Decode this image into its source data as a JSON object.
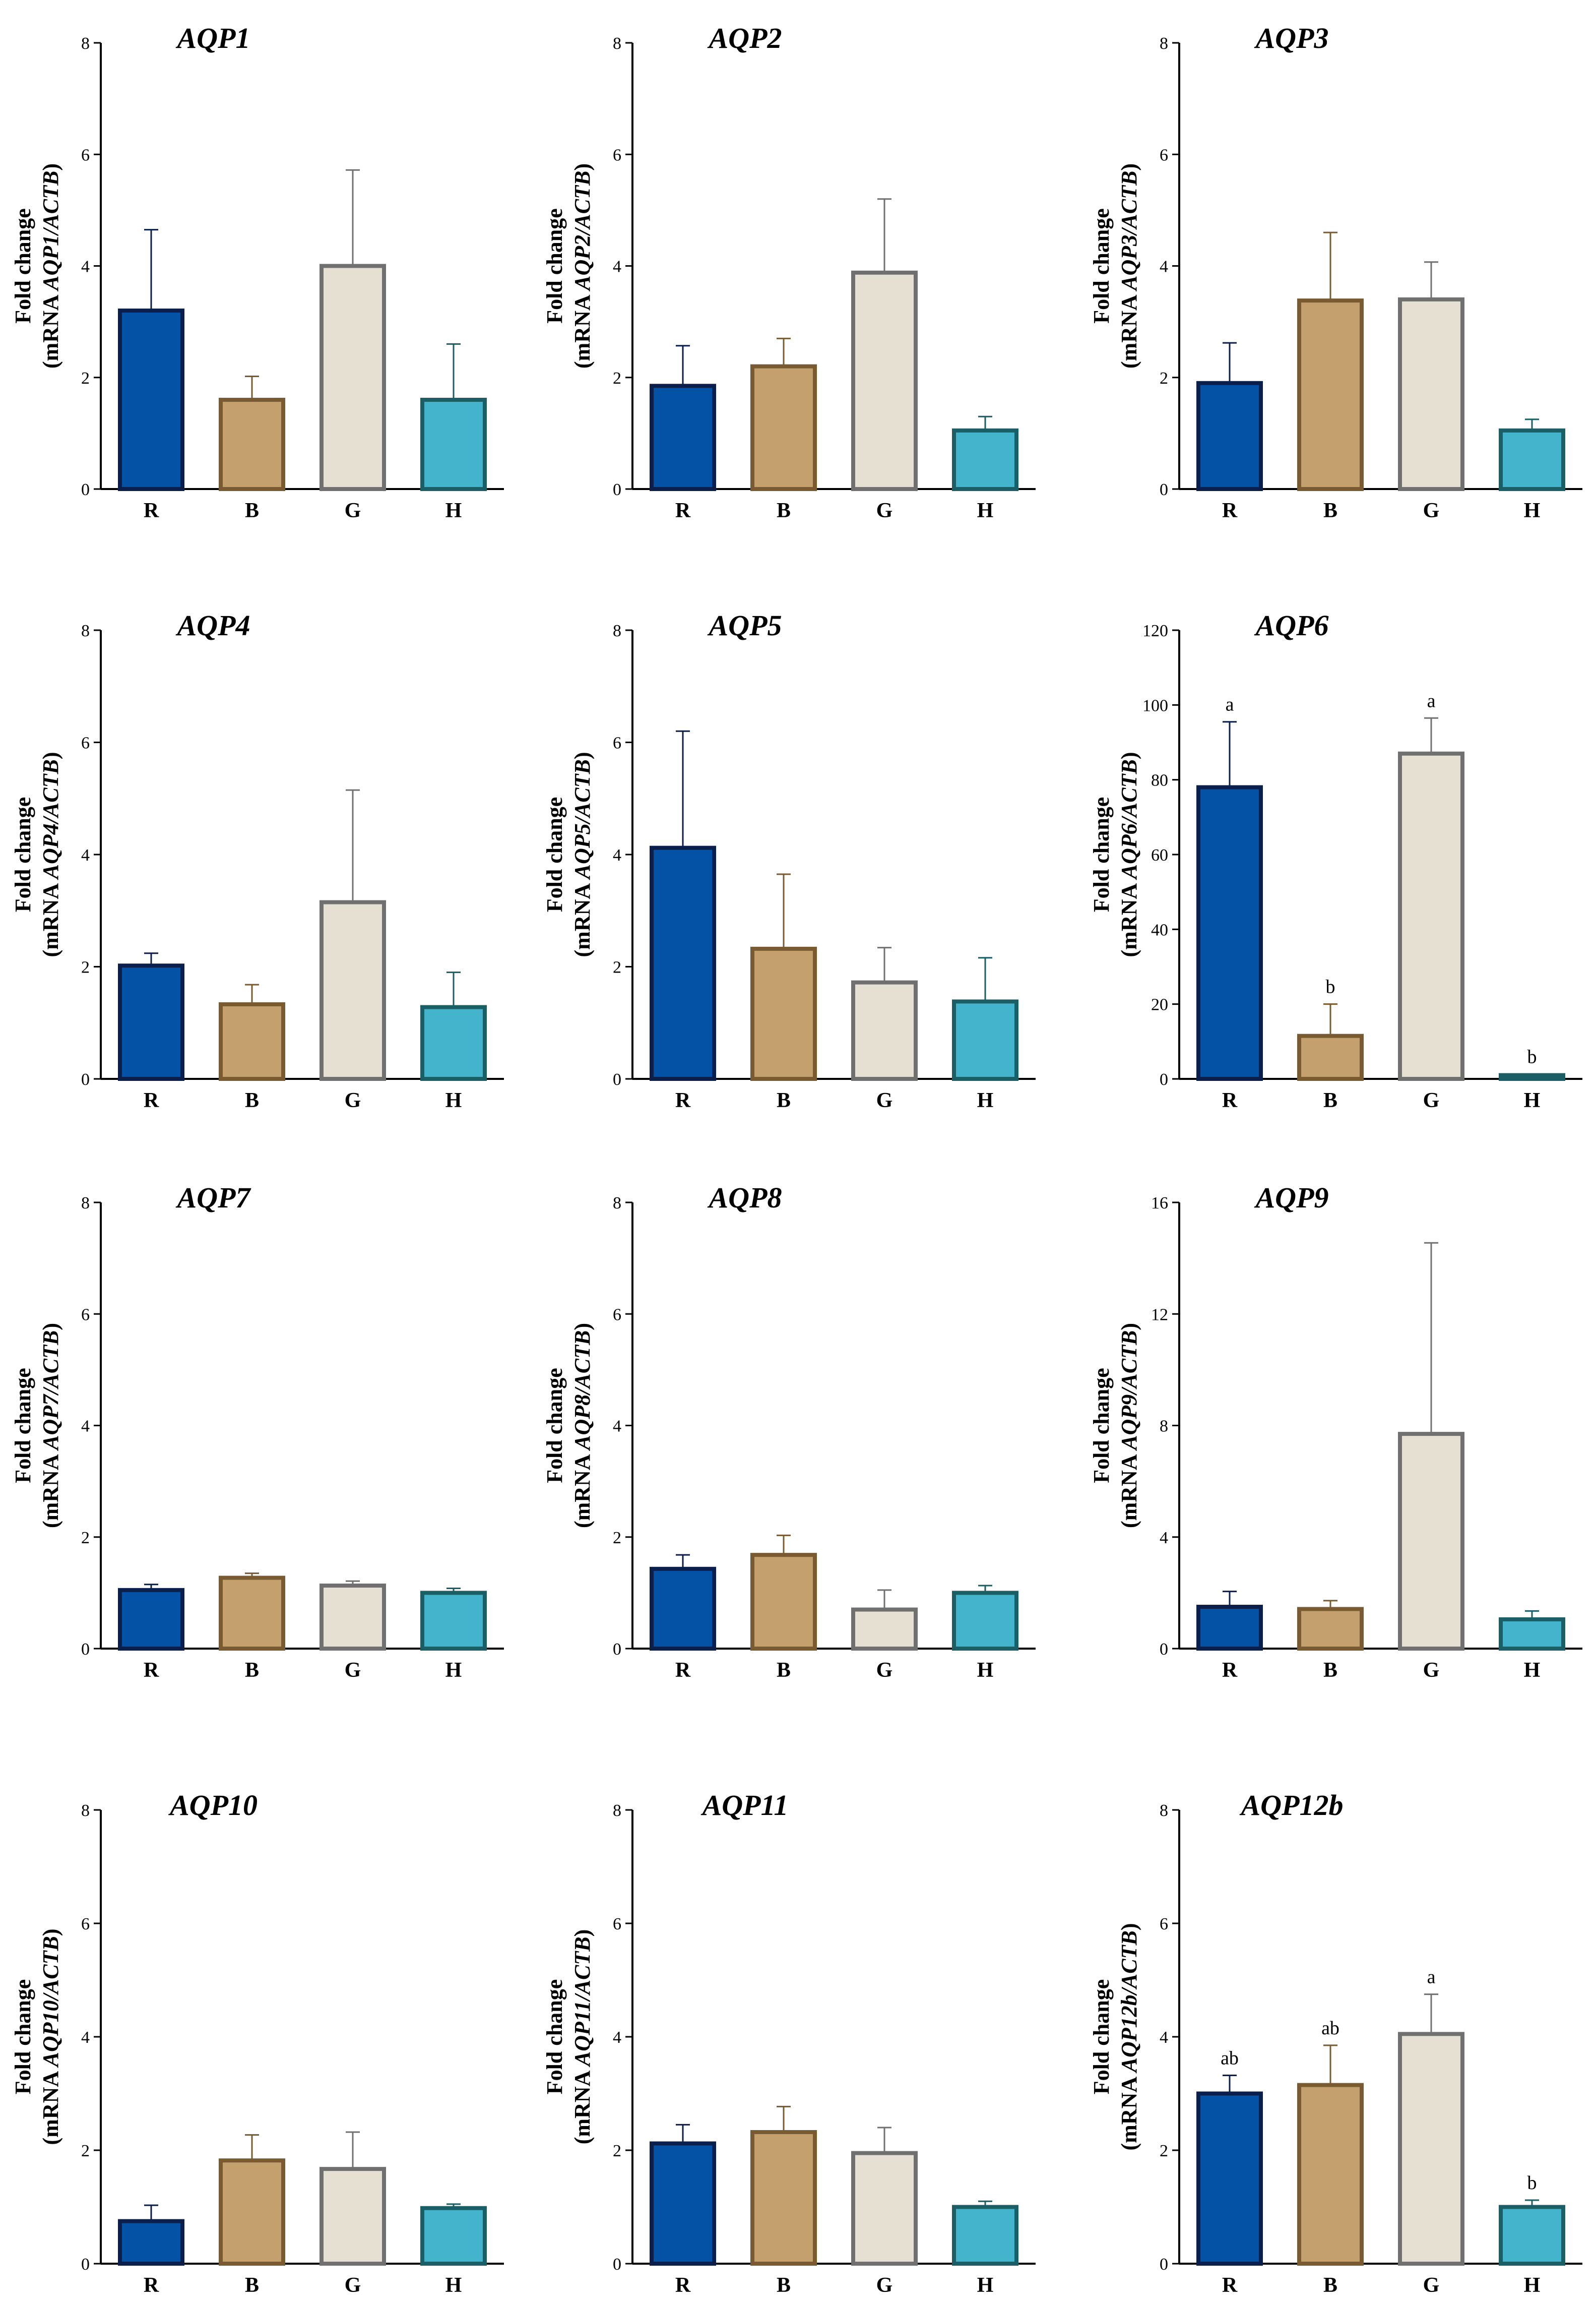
{
  "figure": {
    "colors": {
      "R": {
        "fill": "#0352a6",
        "stroke": "#0b1f4d"
      },
      "B": {
        "fill": "#c4a06f",
        "stroke": "#7a5a30"
      },
      "G": {
        "fill": "#e6e0d3",
        "stroke": "#707070"
      },
      "H": {
        "fill": "#44b4cc",
        "stroke": "#1a5e66"
      }
    }
  },
  "chart_data": [
    {
      "type": "bar",
      "title": "AQP1",
      "ylabel_line1": "Fold change",
      "ylabel_prefix": "(mRNA ",
      "ylabel_gene": "AQP1/ACTB",
      "ylabel_suffix": ")",
      "categories": [
        "R",
        "B",
        "G",
        "H"
      ],
      "values": [
        3.2,
        1.6,
        4.0,
        1.6
      ],
      "errors": [
        1.45,
        0.42,
        1.72,
        1.0
      ],
      "significance": [],
      "ylim": [
        0,
        8
      ],
      "yticks": [
        0,
        2,
        4,
        6,
        8
      ]
    },
    {
      "type": "bar",
      "title": "AQP2",
      "ylabel_line1": "Fold change",
      "ylabel_prefix": "(mRNA ",
      "ylabel_gene": "AQP2/ACTB",
      "ylabel_suffix": ")",
      "categories": [
        "R",
        "B",
        "G",
        "H"
      ],
      "values": [
        1.85,
        2.2,
        3.88,
        1.05
      ],
      "errors": [
        0.72,
        0.5,
        1.32,
        0.25
      ],
      "significance": [],
      "ylim": [
        0,
        8
      ],
      "yticks": [
        0,
        2,
        4,
        6,
        8
      ]
    },
    {
      "type": "bar",
      "title": "AQP3",
      "ylabel_line1": "Fold change",
      "ylabel_prefix": "(mRNA ",
      "ylabel_gene": "AQP3/ACTB",
      "ylabel_suffix": ")",
      "categories": [
        "R",
        "B",
        "G",
        "H"
      ],
      "values": [
        1.9,
        3.38,
        3.4,
        1.05
      ],
      "errors": [
        0.72,
        1.22,
        0.67,
        0.2
      ],
      "significance": [],
      "ylim": [
        0,
        8
      ],
      "yticks": [
        0,
        2,
        4,
        6,
        8
      ]
    },
    {
      "type": "bar",
      "title": "AQP4",
      "ylabel_line1": "Fold change",
      "ylabel_prefix": "(mRNA ",
      "ylabel_gene": "AQP4/ACTB",
      "ylabel_suffix": ")",
      "categories": [
        "R",
        "B",
        "G",
        "H"
      ],
      "values": [
        2.02,
        1.33,
        3.15,
        1.28
      ],
      "errors": [
        0.22,
        0.35,
        2.0,
        0.62
      ],
      "significance": [],
      "ylim": [
        0,
        8
      ],
      "yticks": [
        0,
        2,
        4,
        6,
        8
      ]
    },
    {
      "type": "bar",
      "title": "AQP5",
      "ylabel_line1": "Fold change",
      "ylabel_prefix": "(mRNA ",
      "ylabel_gene": "AQP5/ACTB",
      "ylabel_suffix": ")",
      "categories": [
        "R",
        "B",
        "G",
        "H"
      ],
      "values": [
        4.12,
        2.32,
        1.72,
        1.38
      ],
      "errors": [
        2.08,
        1.33,
        0.62,
        0.78
      ],
      "significance": [],
      "ylim": [
        0,
        8
      ],
      "yticks": [
        0,
        2,
        4,
        6,
        8
      ]
    },
    {
      "type": "bar",
      "title": "AQP6",
      "ylabel_line1": "Fold change",
      "ylabel_prefix": "(mRNA ",
      "ylabel_gene": "AQP6/ACTB",
      "ylabel_suffix": ")",
      "categories": [
        "R",
        "B",
        "G",
        "H"
      ],
      "values": [
        78,
        11.5,
        87,
        1.0
      ],
      "errors": [
        17.5,
        8.5,
        9.5,
        0.3
      ],
      "significance": [
        "a",
        "b",
        "a",
        "b"
      ],
      "ylim": [
        0,
        120
      ],
      "yticks": [
        0,
        20,
        40,
        60,
        80,
        100,
        120
      ]
    },
    {
      "type": "bar",
      "title": "AQP7",
      "ylabel_line1": "Fold change",
      "ylabel_prefix": "(mRNA ",
      "ylabel_gene": "AQP7/ACTB",
      "ylabel_suffix": ")",
      "categories": [
        "R",
        "B",
        "G",
        "H"
      ],
      "values": [
        1.05,
        1.27,
        1.13,
        1.0
      ],
      "errors": [
        0.1,
        0.08,
        0.08,
        0.08
      ],
      "significance": [],
      "ylim": [
        0,
        8
      ],
      "yticks": [
        0,
        2,
        4,
        6,
        8
      ]
    },
    {
      "type": "bar",
      "title": "AQP8",
      "ylabel_line1": "Fold change",
      "ylabel_prefix": "(mRNA ",
      "ylabel_gene": "AQP8/ACTB",
      "ylabel_suffix": ")",
      "categories": [
        "R",
        "B",
        "G",
        "H"
      ],
      "values": [
        1.43,
        1.68,
        0.7,
        1.0
      ],
      "errors": [
        0.25,
        0.35,
        0.35,
        0.13
      ],
      "significance": [],
      "ylim": [
        0,
        8
      ],
      "yticks": [
        0,
        2,
        4,
        6,
        8
      ]
    },
    {
      "type": "bar",
      "title": "AQP9",
      "ylabel_line1": "Fold change",
      "ylabel_prefix": "(mRNA ",
      "ylabel_gene": "AQP9/ACTB",
      "ylabel_suffix": ")",
      "categories": [
        "R",
        "B",
        "G",
        "H"
      ],
      "values": [
        1.5,
        1.42,
        7.7,
        1.05
      ],
      "errors": [
        0.55,
        0.3,
        6.85,
        0.3
      ],
      "significance": [],
      "ylim": [
        0,
        16
      ],
      "yticks": [
        0,
        4,
        8,
        12,
        16
      ]
    },
    {
      "type": "bar",
      "title": "AQP10",
      "ylabel_line1": "Fold change",
      "ylabel_prefix": "(mRNA ",
      "ylabel_gene": "AQP10/ACTB",
      "ylabel_suffix": ")",
      "categories": [
        "R",
        "B",
        "G",
        "H"
      ],
      "values": [
        0.75,
        1.82,
        1.67,
        0.98
      ],
      "errors": [
        0.28,
        0.45,
        0.65,
        0.07
      ],
      "significance": [],
      "ylim": [
        0,
        8
      ],
      "yticks": [
        0,
        2,
        4,
        6,
        8
      ]
    },
    {
      "type": "bar",
      "title": "AQP11",
      "ylabel_line1": "Fold change",
      "ylabel_prefix": "(mRNA ",
      "ylabel_gene": "AQP11/ACTB",
      "ylabel_suffix": ")",
      "categories": [
        "R",
        "B",
        "G",
        "H"
      ],
      "values": [
        2.12,
        2.32,
        1.95,
        1.0
      ],
      "errors": [
        0.33,
        0.45,
        0.45,
        0.1
      ],
      "significance": [],
      "ylim": [
        0,
        8
      ],
      "yticks": [
        0,
        2,
        4,
        6,
        8
      ]
    },
    {
      "type": "bar",
      "title": "AQP12b",
      "ylabel_line1": "Fold change",
      "ylabel_prefix": "(mRNA ",
      "ylabel_gene": "AQP12b/ACTB",
      "ylabel_suffix": ")",
      "categories": [
        "R",
        "B",
        "G",
        "H"
      ],
      "values": [
        3.0,
        3.15,
        4.05,
        1.0
      ],
      "errors": [
        0.32,
        0.7,
        0.7,
        0.12
      ],
      "significance": [
        "ab",
        "ab",
        "a",
        "b"
      ],
      "ylim": [
        0,
        8
      ],
      "yticks": [
        0,
        2,
        4,
        6,
        8
      ]
    }
  ]
}
